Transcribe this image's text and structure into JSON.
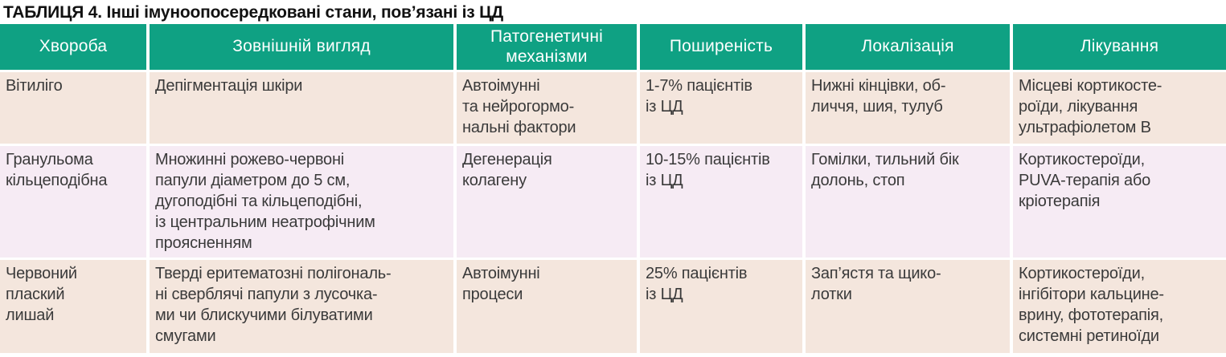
{
  "title": "ТАБЛИЦЯ 4. Інші імуноопосередковані стани, пов’язані із ЦД",
  "colors": {
    "header_bg": "#0fa183",
    "row_bg_beige": "#f4e6dd",
    "row_bg_lavender": "#f6ebf4",
    "header_text": "#ffffff",
    "body_text": "#3a3a3a",
    "title_text": "#111111"
  },
  "table": {
    "columns": [
      "Хвороба",
      "Зовнішній вигляд",
      "Патогенетичні\nмеханізми",
      "Поширеність",
      "Локалізація",
      "Лікування"
    ],
    "rows": [
      {
        "disease": "Вітиліго",
        "appearance": "Депігментація шкіри",
        "mechanisms": "Автоімунні\nта нейрогормо-\nнальні фактори",
        "prevalence": "1-7% пацієнтів\nіз ЦД",
        "localization": "Нижні кінцівки, об-\nличчя, шия, тулуб",
        "treatment": "Місцеві кортикосте-\nроїди, лікування\nультрафіолетом В"
      },
      {
        "disease": "Гранульома\nкільцеподібна",
        "appearance": "Множинні рожево-червоні\nпапули діаметром до 5 см,\nдугоподібні та кільцеподібні,\nіз центральним неатрофічним\nпроясненням",
        "mechanisms": "Дегенерація\nколагену",
        "prevalence": "10-15% пацієнтів\nіз ЦД",
        "localization": "Гомілки, тильний бік\nдолонь, стоп",
        "treatment": "Кортикостероїди,\nPUVA-терапія або\nкріотерапія"
      },
      {
        "disease": "Червоний\nплаский\nлишай",
        "appearance": "Тверді еритематозні полігональ-\nні сверблячі папули з лусочка-\nми чи блискучими білуватими\nсмугами",
        "mechanisms": "Автоімунні\nпроцеси",
        "prevalence": "25% пацієнтів\nіз ЦД",
        "localization": "Зап’ястя та щико-\nлотки",
        "treatment": "Кортикостероїди,\nінгібітори кальцине-\nврину, фототерапія,\nсистемні ретиноїди"
      }
    ]
  }
}
